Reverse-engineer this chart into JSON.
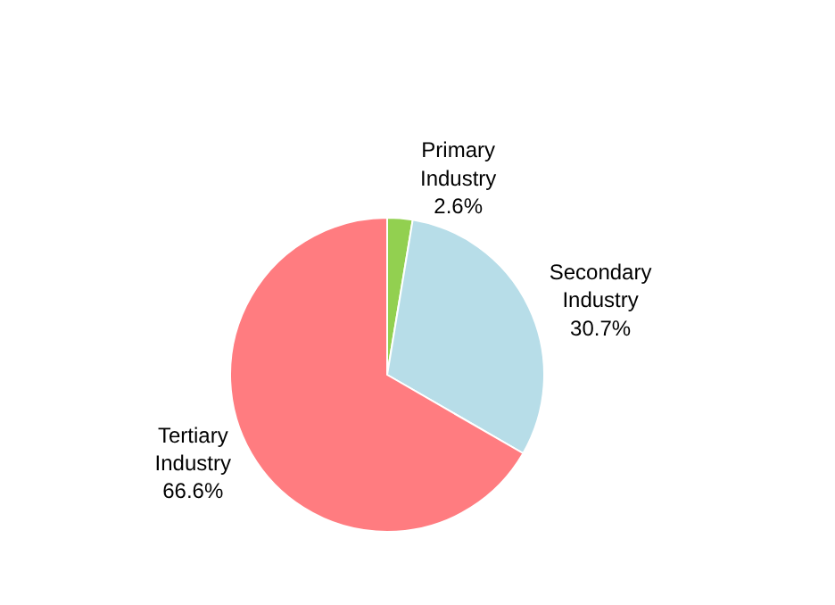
{
  "chart_data": {
    "type": "pie",
    "categories": [
      "Primary Industry",
      "Secondary Industry",
      "Tertiary Industry"
    ],
    "values": [
      2.6,
      30.7,
      66.6
    ],
    "value_labels": [
      "2.6%",
      "30.7%",
      "66.6%"
    ],
    "colors": [
      "#92d050",
      "#b7dde8",
      "#ff7c80"
    ],
    "legend": false
  }
}
